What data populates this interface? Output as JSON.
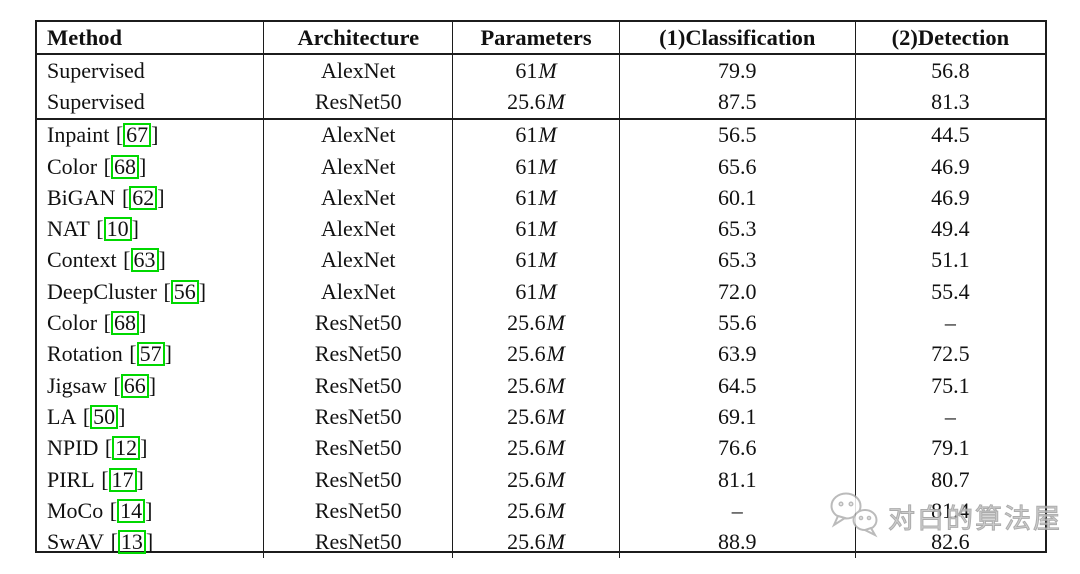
{
  "table": {
    "headers": [
      "Method",
      "Architecture",
      "Parameters",
      "(1)Classification",
      "(2)Detection"
    ],
    "border_color": "#1c1c1c",
    "cite_box_color": "#00d800",
    "groups": [
      {
        "rows": [
          {
            "method": "Supervised",
            "cite": null,
            "architecture": "AlexNet",
            "parameters": "61",
            "parameters_unit": "M",
            "classification": "79.9",
            "detection": "56.8"
          },
          {
            "method": "Supervised",
            "cite": null,
            "architecture": "ResNet50",
            "parameters": "25.6",
            "parameters_unit": "M",
            "classification": "87.5",
            "detection": "81.3"
          }
        ]
      },
      {
        "rows": [
          {
            "method": "Inpaint",
            "cite": "67",
            "architecture": "AlexNet",
            "parameters": "61",
            "parameters_unit": "M",
            "classification": "56.5",
            "detection": "44.5"
          },
          {
            "method": "Color",
            "cite": "68",
            "architecture": "AlexNet",
            "parameters": "61",
            "parameters_unit": "M",
            "classification": "65.6",
            "detection": "46.9"
          },
          {
            "method": "BiGAN",
            "cite": "62",
            "architecture": "AlexNet",
            "parameters": "61",
            "parameters_unit": "M",
            "classification": "60.1",
            "detection": "46.9"
          },
          {
            "method": "NAT",
            "cite": "10",
            "architecture": "AlexNet",
            "parameters": "61",
            "parameters_unit": "M",
            "classification": "65.3",
            "detection": "49.4"
          },
          {
            "method": "Context",
            "cite": "63",
            "architecture": "AlexNet",
            "parameters": "61",
            "parameters_unit": "M",
            "classification": "65.3",
            "detection": "51.1"
          },
          {
            "method": "DeepCluster",
            "cite": "56",
            "architecture": "AlexNet",
            "parameters": "61",
            "parameters_unit": "M",
            "classification": "72.0",
            "detection": "55.4"
          },
          {
            "method": "Color",
            "cite": "68",
            "architecture": "ResNet50",
            "parameters": "25.6",
            "parameters_unit": "M",
            "classification": "55.6",
            "detection": "–"
          },
          {
            "method": "Rotation",
            "cite": "57",
            "architecture": "ResNet50",
            "parameters": "25.6",
            "parameters_unit": "M",
            "classification": "63.9",
            "detection": "72.5"
          },
          {
            "method": "Jigsaw",
            "cite": "66",
            "architecture": "ResNet50",
            "parameters": "25.6",
            "parameters_unit": "M",
            "classification": "64.5",
            "detection": "75.1"
          },
          {
            "method": "LA",
            "cite": "50",
            "architecture": "ResNet50",
            "parameters": "25.6",
            "parameters_unit": "M",
            "classification": "69.1",
            "detection": "–"
          },
          {
            "method": "NPID",
            "cite": "12",
            "architecture": "ResNet50",
            "parameters": "25.6",
            "parameters_unit": "M",
            "classification": "76.6",
            "detection": "79.1"
          },
          {
            "method": "PIRL",
            "cite": "17",
            "architecture": "ResNet50",
            "parameters": "25.6",
            "parameters_unit": "M",
            "classification": "81.1",
            "detection": "80.7"
          },
          {
            "method": "MoCo",
            "cite": "14",
            "architecture": "ResNet50",
            "parameters": "25.6",
            "parameters_unit": "M",
            "classification": "–",
            "detection": "81.4"
          },
          {
            "method": "SwAV",
            "cite": "13",
            "architecture": "ResNet50",
            "parameters": "25.6",
            "parameters_unit": "M",
            "classification": "88.9",
            "detection": "82.6"
          }
        ]
      }
    ]
  },
  "watermark": {
    "text": "对白的算法屋",
    "icon": "wechat-chat-bubbles-icon",
    "color": "#b5b5b5"
  }
}
